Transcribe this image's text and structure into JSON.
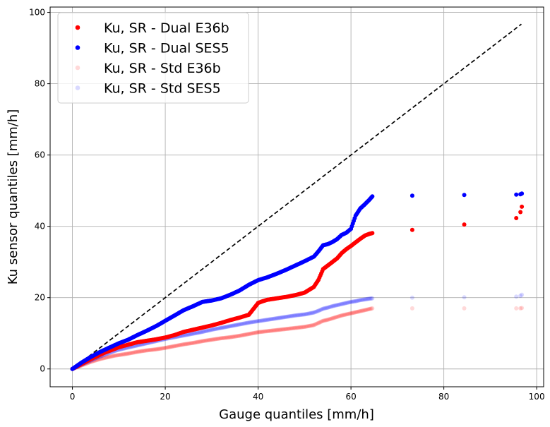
{
  "chart_data": {
    "type": "scatter",
    "xlabel": "Gauge quantiles [mm/h]",
    "ylabel": "Ku sensor quantiles [mm/h]",
    "xlim": [
      -4.8,
      101.5
    ],
    "ylim": [
      -5,
      101.5
    ],
    "xticks": [
      0,
      20,
      40,
      60,
      80,
      100
    ],
    "yticks": [
      0,
      20,
      40,
      60,
      80,
      100
    ],
    "grid": true,
    "legend_position": "top-left",
    "reference_line": {
      "x": [
        0,
        96.7
      ],
      "y": [
        0,
        96.7
      ],
      "color": "#000000",
      "style": "dashed"
    },
    "series": [
      {
        "name": "Ku, SR - Std E36b",
        "color": "#ff0000",
        "opacity": 0.15,
        "points": [
          [
            0,
            0
          ],
          [
            1,
            0.5
          ],
          [
            2,
            1
          ],
          [
            3,
            1.5
          ],
          [
            4,
            2
          ],
          [
            5,
            2.4
          ],
          [
            6,
            2.8
          ],
          [
            7,
            3.1
          ],
          [
            8,
            3.4
          ],
          [
            9,
            3.7
          ],
          [
            10,
            3.9
          ],
          [
            12,
            4.3
          ],
          [
            14,
            4.8
          ],
          [
            16,
            5.2
          ],
          [
            18,
            5.5
          ],
          [
            20,
            5.9
          ],
          [
            22,
            6.4
          ],
          [
            24,
            6.9
          ],
          [
            26,
            7.3
          ],
          [
            28,
            7.8
          ],
          [
            30,
            8.2
          ],
          [
            32,
            8.6
          ],
          [
            34,
            8.9
          ],
          [
            36,
            9.3
          ],
          [
            38,
            9.8
          ],
          [
            40,
            10.3
          ],
          [
            42,
            10.6
          ],
          [
            44,
            10.9
          ],
          [
            46,
            11.2
          ],
          [
            48,
            11.5
          ],
          [
            50,
            11.8
          ],
          [
            52,
            12.3
          ],
          [
            53,
            12.9
          ],
          [
            54,
            13.5
          ],
          [
            55,
            13.8
          ],
          [
            56,
            14.2
          ],
          [
            57,
            14.6
          ],
          [
            58,
            15.0
          ],
          [
            59,
            15.3
          ],
          [
            60,
            15.6
          ],
          [
            61,
            15.9
          ],
          [
            62,
            16.2
          ],
          [
            63,
            16.5
          ],
          [
            64,
            16.8
          ],
          [
            64.6,
            17.0
          ],
          [
            73.2,
            17.0
          ],
          [
            84.4,
            17.0
          ],
          [
            95.6,
            17.0
          ],
          [
            96.5,
            17.0
          ],
          [
            96.8,
            17.1
          ]
        ]
      },
      {
        "name": "Ku, SR - Std SES5",
        "color": "#0000ff",
        "opacity": 0.15,
        "points": [
          [
            0,
            0
          ],
          [
            1,
            0.6
          ],
          [
            2,
            1.2
          ],
          [
            3,
            1.8
          ],
          [
            4,
            2.4
          ],
          [
            5,
            3.0
          ],
          [
            6,
            3.5
          ],
          [
            7,
            4.0
          ],
          [
            8,
            4.5
          ],
          [
            9,
            5.0
          ],
          [
            10,
            5.4
          ],
          [
            12,
            6.0
          ],
          [
            14,
            6.6
          ],
          [
            16,
            7.2
          ],
          [
            18,
            7.8
          ],
          [
            20,
            8.4
          ],
          [
            22,
            8.9
          ],
          [
            24,
            9.4
          ],
          [
            26,
            9.9
          ],
          [
            28,
            10.4
          ],
          [
            30,
            11.0
          ],
          [
            32,
            11.5
          ],
          [
            34,
            12.0
          ],
          [
            36,
            12.5
          ],
          [
            38,
            13.0
          ],
          [
            40,
            13.4
          ],
          [
            42,
            13.8
          ],
          [
            44,
            14.2
          ],
          [
            46,
            14.6
          ],
          [
            48,
            15.0
          ],
          [
            50,
            15.3
          ],
          [
            52,
            15.8
          ],
          [
            53,
            16.3
          ],
          [
            54,
            16.9
          ],
          [
            55,
            17.2
          ],
          [
            56,
            17.6
          ],
          [
            57,
            17.9
          ],
          [
            58,
            18.2
          ],
          [
            59,
            18.5
          ],
          [
            60,
            18.8
          ],
          [
            61,
            19.0
          ],
          [
            62,
            19.3
          ],
          [
            63,
            19.5
          ],
          [
            64,
            19.7
          ],
          [
            64.6,
            19.8
          ],
          [
            73.2,
            20.0
          ],
          [
            84.4,
            20.1
          ],
          [
            95.6,
            20.3
          ],
          [
            96.5,
            20.5
          ],
          [
            96.8,
            20.8
          ]
        ]
      },
      {
        "name": "Ku, SR - Dual E36b",
        "color": "#ff0000",
        "opacity": 1,
        "points": [
          [
            0,
            0
          ],
          [
            1,
            0.7
          ],
          [
            2,
            1.4
          ],
          [
            3,
            2.1
          ],
          [
            4,
            2.8
          ],
          [
            5,
            3.4
          ],
          [
            6,
            4.0
          ],
          [
            7,
            4.6
          ],
          [
            8,
            5.1
          ],
          [
            9,
            5.6
          ],
          [
            10,
            6.1
          ],
          [
            12,
            6.8
          ],
          [
            14,
            7.5
          ],
          [
            16,
            7.9
          ],
          [
            18,
            8.3
          ],
          [
            20,
            8.8
          ],
          [
            22,
            9.5
          ],
          [
            24,
            10.4
          ],
          [
            26,
            11.0
          ],
          [
            28,
            11.6
          ],
          [
            30,
            12.2
          ],
          [
            32,
            12.9
          ],
          [
            34,
            13.7
          ],
          [
            36,
            14.4
          ],
          [
            38,
            15.2
          ],
          [
            40,
            18.5
          ],
          [
            41,
            19.0
          ],
          [
            42,
            19.4
          ],
          [
            44,
            19.8
          ],
          [
            46,
            20.2
          ],
          [
            48,
            20.7
          ],
          [
            50,
            21.4
          ],
          [
            52,
            23.0
          ],
          [
            53,
            25.0
          ],
          [
            54,
            28.0
          ],
          [
            55,
            29.0
          ],
          [
            56,
            30.0
          ],
          [
            57,
            31.0
          ],
          [
            58,
            32.5
          ],
          [
            59,
            33.6
          ],
          [
            60,
            34.5
          ],
          [
            61,
            35.5
          ],
          [
            62,
            36.5
          ],
          [
            63,
            37.4
          ],
          [
            64,
            37.9
          ],
          [
            64.6,
            38.1
          ],
          [
            73.2,
            39.0
          ],
          [
            84.4,
            40.5
          ],
          [
            95.6,
            42.3
          ],
          [
            96.5,
            44.0
          ],
          [
            96.8,
            45.5
          ]
        ]
      },
      {
        "name": "Ku, SR - Dual SES5",
        "color": "#0000ff",
        "opacity": 1,
        "points": [
          [
            0,
            0
          ],
          [
            1,
            0.9
          ],
          [
            2,
            1.8
          ],
          [
            3,
            2.6
          ],
          [
            4,
            3.4
          ],
          [
            5,
            4.1
          ],
          [
            6,
            4.8
          ],
          [
            7,
            5.4
          ],
          [
            8,
            6.0
          ],
          [
            9,
            6.6
          ],
          [
            10,
            7.2
          ],
          [
            12,
            8.2
          ],
          [
            14,
            9.5
          ],
          [
            16,
            10.7
          ],
          [
            18,
            12.0
          ],
          [
            20,
            13.5
          ],
          [
            22,
            15.0
          ],
          [
            24,
            16.5
          ],
          [
            26,
            17.6
          ],
          [
            28,
            18.8
          ],
          [
            30,
            19.2
          ],
          [
            32,
            19.8
          ],
          [
            34,
            20.8
          ],
          [
            36,
            22.0
          ],
          [
            38,
            23.6
          ],
          [
            40,
            24.9
          ],
          [
            42,
            25.7
          ],
          [
            44,
            26.7
          ],
          [
            46,
            27.8
          ],
          [
            48,
            29.0
          ],
          [
            50,
            30.2
          ],
          [
            52,
            31.5
          ],
          [
            53,
            33.0
          ],
          [
            54,
            34.7
          ],
          [
            55,
            35.0
          ],
          [
            56,
            35.6
          ],
          [
            57,
            36.4
          ],
          [
            58,
            37.6
          ],
          [
            59,
            38.2
          ],
          [
            60,
            39.3
          ],
          [
            61,
            43.0
          ],
          [
            62,
            45.0
          ],
          [
            63,
            46.2
          ],
          [
            64,
            47.5
          ],
          [
            64.6,
            48.4
          ],
          [
            73.2,
            48.6
          ],
          [
            84.4,
            48.8
          ],
          [
            95.6,
            48.9
          ],
          [
            96.5,
            49.0
          ],
          [
            96.8,
            49.2
          ]
        ]
      }
    ],
    "legend": [
      {
        "label": "Ku, SR - Dual E36b",
        "color": "#ff0000",
        "opacity": 1
      },
      {
        "label": "Ku, SR - Dual SES5",
        "color": "#0000ff",
        "opacity": 1
      },
      {
        "label": "Ku, SR - Std E36b",
        "color": "#ff0000",
        "opacity": 0.15
      },
      {
        "label": "Ku, SR - Std SES5",
        "color": "#0000ff",
        "opacity": 0.15
      }
    ]
  }
}
